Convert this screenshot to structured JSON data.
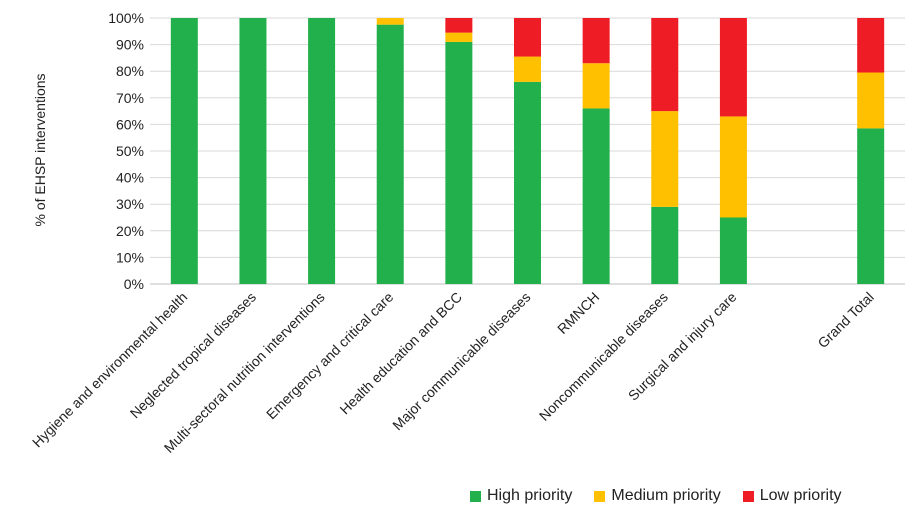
{
  "chart_data": {
    "type": "bar",
    "stacked": true,
    "title": "",
    "xlabel": "",
    "ylabel": "% of EHSP interventions",
    "ylim": [
      0,
      100
    ],
    "yticks": [
      "0%",
      "10%",
      "20%",
      "30%",
      "40%",
      "50%",
      "60%",
      "70%",
      "80%",
      "90%",
      "100%"
    ],
    "grid": true,
    "legend_position": "bottom-right",
    "categories": [
      "Hygiene and environmental health",
      "Neglected tropical diseases",
      "Multi-sectoral nutrition interventions",
      "Emergency and critical care",
      "Health education and BCC",
      "Major communicable diseases",
      "RMNCH",
      "Noncommunicable diseases",
      "Surgical and injury care",
      "Grand Total"
    ],
    "series": [
      {
        "name": "High priority",
        "color": "#21b04b",
        "values": [
          100,
          100,
          100,
          97.5,
          91,
          76,
          66,
          29,
          25,
          58.5
        ]
      },
      {
        "name": "Medium priority",
        "color": "#ffc000",
        "values": [
          0,
          0,
          0,
          2.5,
          3.5,
          9.5,
          17,
          36,
          38,
          21
        ]
      },
      {
        "name": "Low priority",
        "color": "#ee1c24",
        "values": [
          0,
          0,
          0,
          0,
          5.5,
          14.5,
          17,
          35,
          37,
          20.5
        ]
      }
    ]
  }
}
